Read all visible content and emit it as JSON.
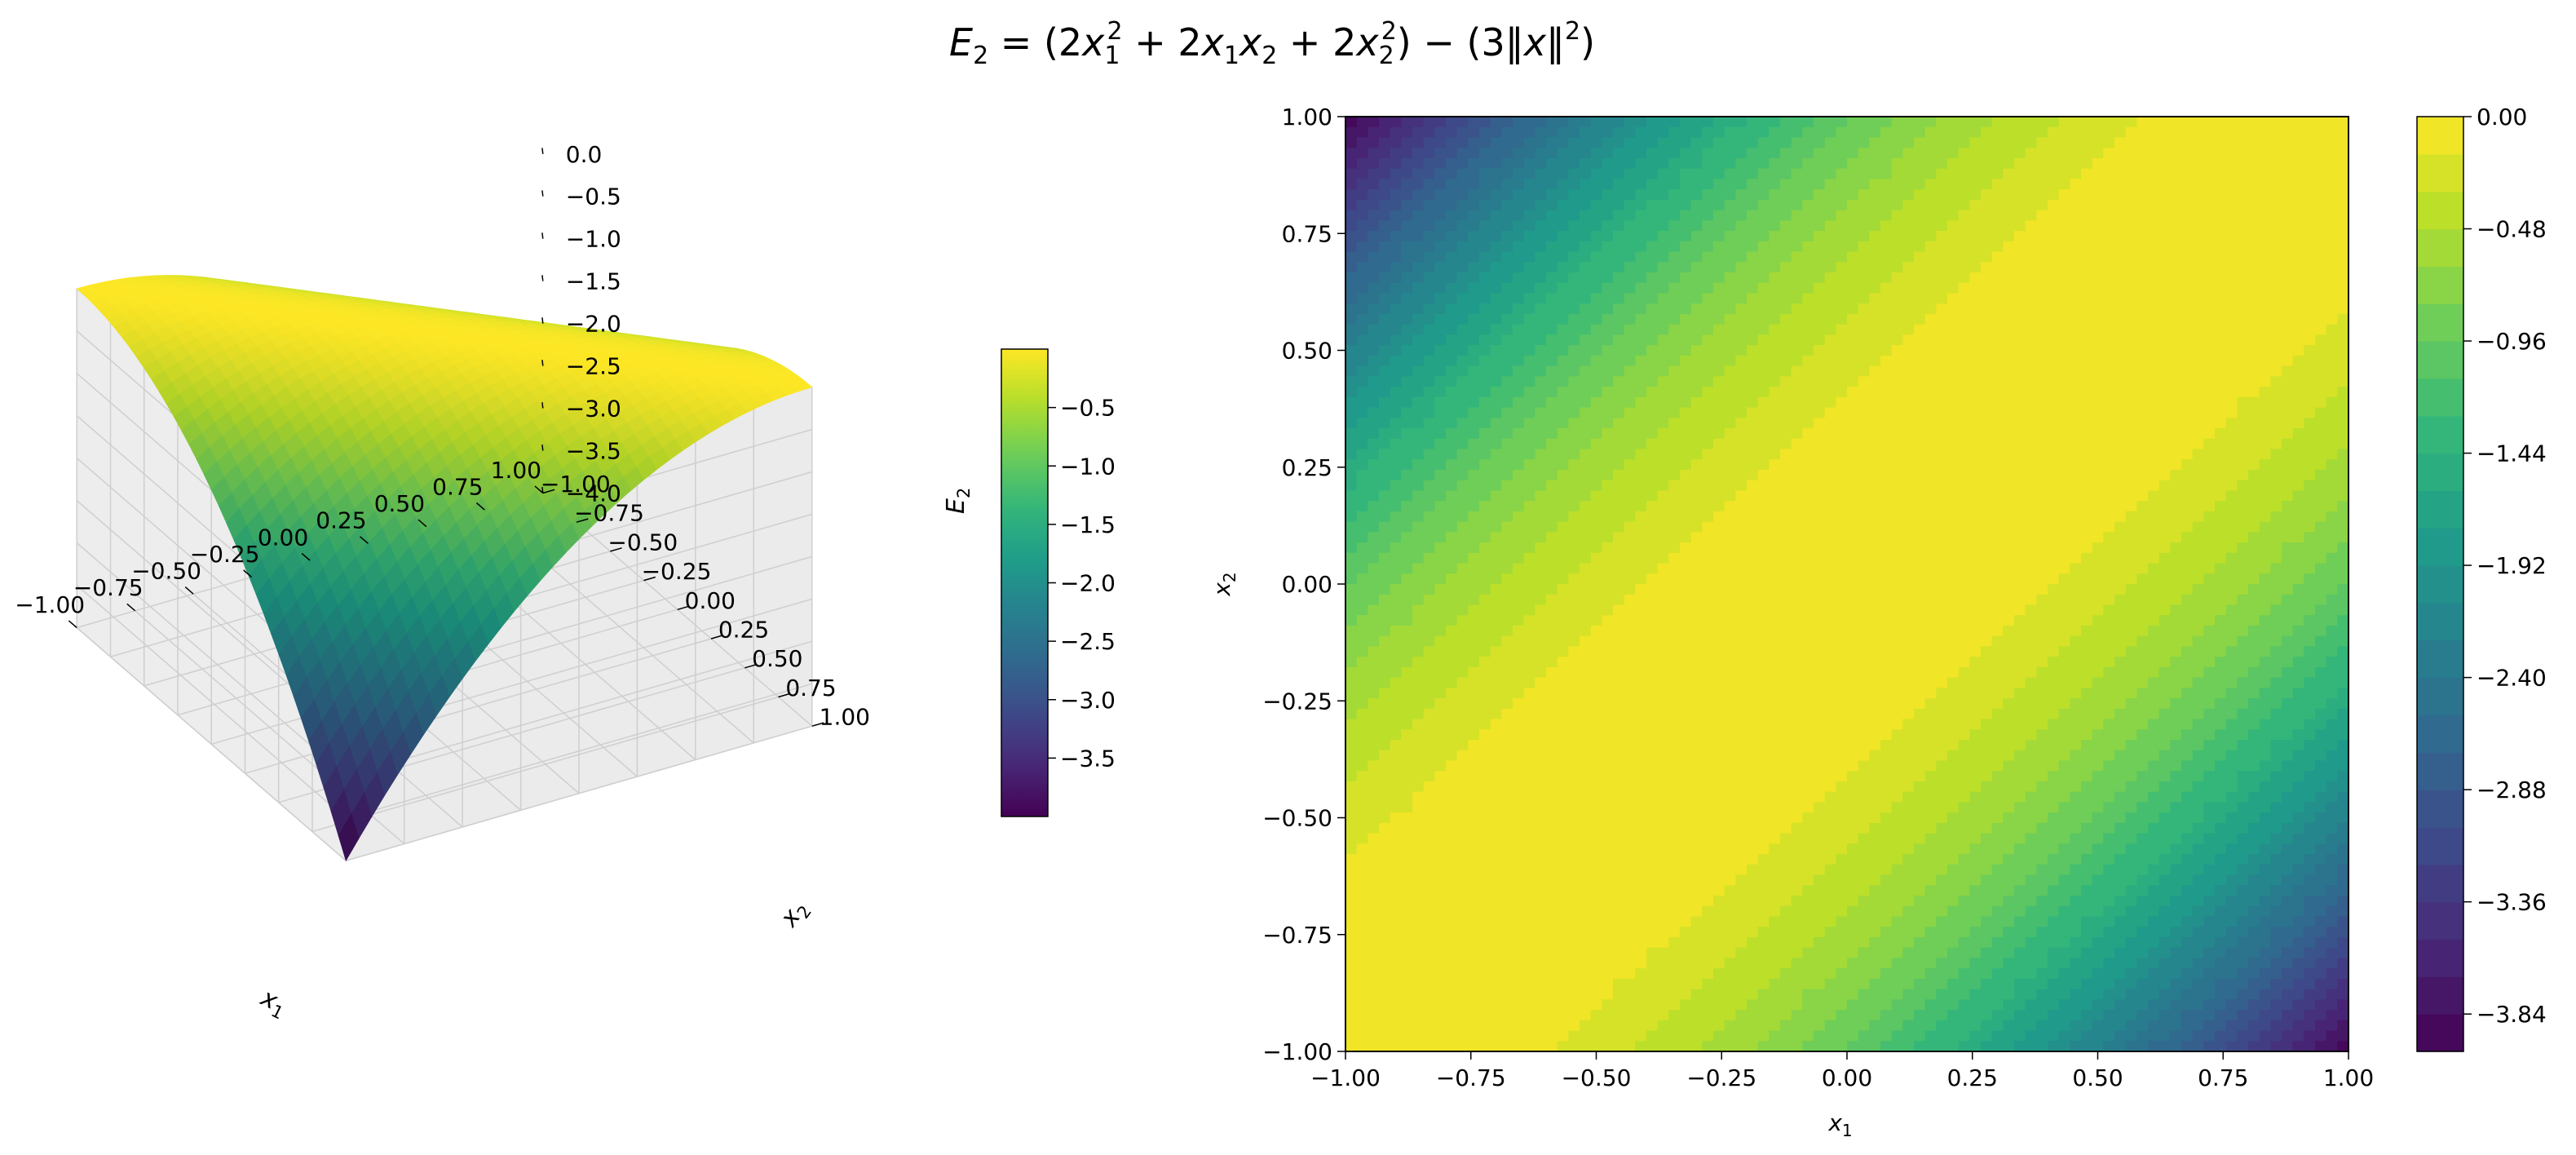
{
  "title": {
    "E": "E",
    "sub2": "2",
    "eq": " = (2",
    "x": "x",
    "sub1": "1",
    "sup2": "2",
    "plus": " + 2",
    "plus2": " + 2",
    "close": ") − (3‖",
    "norm": "‖",
    "end": ")"
  },
  "chart_data": [
    {
      "type": "surface",
      "function": "E2 = (2*x1^2 + 2*x1*x2 + 2*x2^2) - 3*(x1^2 + x2^2)",
      "x_range": [
        -1.0,
        1.0
      ],
      "y_range": [
        -1.0,
        1.0
      ],
      "zlim": [
        -4.0,
        0.0
      ],
      "colormap": "viridis",
      "x_ticks": [
        "−1.00",
        "−0.75",
        "−0.50",
        "−0.25",
        "0.00",
        "0.25",
        "0.50",
        "0.75",
        "1.00"
      ],
      "y_ticks": [
        "−1.00",
        "−0.75",
        "−0.50",
        "−0.25",
        "0.00",
        "0.25",
        "0.50",
        "0.75",
        "1.00"
      ],
      "z_ticks": [
        "0.0",
        "−0.5",
        "−1.0",
        "−1.5",
        "−2.0",
        "−2.5",
        "−3.0",
        "−3.5",
        "−4.0"
      ],
      "xlabel_main": "x",
      "xlabel_sub": "1",
      "ylabel_main": "x",
      "ylabel_sub": "2",
      "zlabel_main": "E",
      "zlabel_sub": "2",
      "colorbar": {
        "min": -4.0,
        "max": 0.0,
        "ticks": [
          "−0.5",
          "−1.0",
          "−1.5",
          "−2.0",
          "−2.5",
          "−3.0",
          "−3.5"
        ],
        "tick_values": [
          -0.5,
          -1.0,
          -1.5,
          -2.0,
          -2.5,
          -3.0,
          -3.5
        ]
      }
    },
    {
      "type": "heatmap",
      "function": "E2 = (2*x1^2 + 2*x1*x2 + 2*x2^2) - 3*(x1^2 + x2^2)",
      "x_range": [
        -1.0,
        1.0
      ],
      "y_range": [
        -1.0,
        1.0
      ],
      "colormap": "viridis",
      "levels": 25,
      "x_ticks": [
        "−1.00",
        "−0.75",
        "−0.50",
        "−0.25",
        "0.00",
        "0.25",
        "0.50",
        "0.75",
        "1.00"
      ],
      "y_ticks": [
        "−1.00",
        "−0.75",
        "−0.50",
        "−0.25",
        "0.00",
        "0.25",
        "0.50",
        "0.75",
        "1.00"
      ],
      "xlabel_main": "x",
      "xlabel_sub": "1",
      "ylabel_main": "x",
      "ylabel_sub": "2",
      "colorbar": {
        "min": -4.0,
        "max": 0.0,
        "ticks": [
          "0.00",
          "−0.48",
          "−0.96",
          "−1.44",
          "−1.92",
          "−2.40",
          "−2.88",
          "−3.36",
          "−3.84"
        ],
        "tick_values": [
          0.0,
          -0.48,
          -0.96,
          -1.44,
          -1.92,
          -2.4,
          -2.88,
          -3.36,
          -3.84
        ]
      }
    }
  ]
}
